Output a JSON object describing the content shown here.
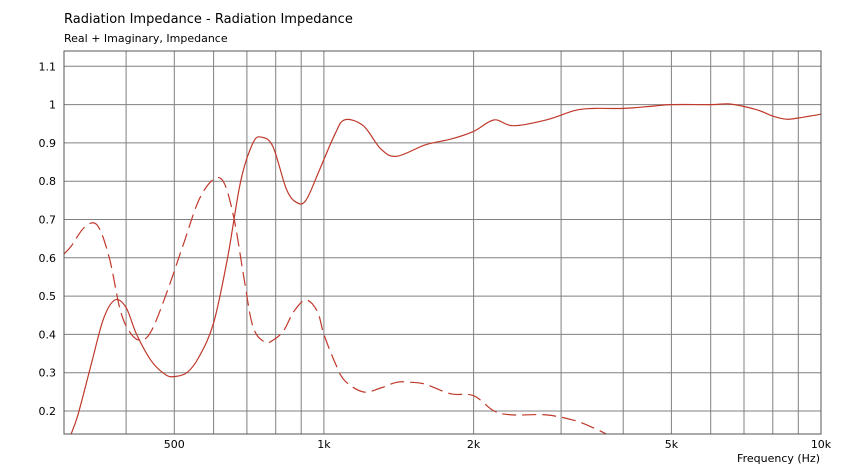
{
  "title": "Radiation Impedance - Radiation Impedance",
  "subtitle": "Real + Imaginary, Impedance",
  "chart_data": {
    "type": "line",
    "xscale": "log",
    "xlim": [
      300,
      10000
    ],
    "ylim": [
      0.14,
      1.14
    ],
    "xlabel": "Frequency  (Hz)",
    "ylabel": "",
    "x_ticks": [
      {
        "value": 500,
        "label": "500"
      },
      {
        "value": 1000,
        "label": "1k"
      },
      {
        "value": 2000,
        "label": "2k"
      },
      {
        "value": 5000,
        "label": "5k"
      },
      {
        "value": 10000,
        "label": "10k"
      }
    ],
    "x_gridlines": [
      400,
      500,
      600,
      700,
      800,
      900,
      1000,
      2000,
      3000,
      4000,
      5000,
      6000,
      7000,
      8000,
      9000,
      10000
    ],
    "y_ticks": [
      {
        "value": 0.2,
        "label": "0.2"
      },
      {
        "value": 0.3,
        "label": "0.3"
      },
      {
        "value": 0.4,
        "label": "0.4"
      },
      {
        "value": 0.5,
        "label": "0.5"
      },
      {
        "value": 0.6,
        "label": "0.6"
      },
      {
        "value": 0.7,
        "label": "0.7"
      },
      {
        "value": 0.8,
        "label": "0.8"
      },
      {
        "value": 0.9,
        "label": "0.9"
      },
      {
        "value": 1,
        "label": "1"
      },
      {
        "value": 1.1,
        "label": "1.1"
      }
    ],
    "grid": true,
    "line_color": "#c0392b",
    "series": [
      {
        "style": "solid",
        "x": [
          310,
          320,
          340,
          360,
          380,
          400,
          420,
          450,
          480,
          500,
          530,
          560,
          600,
          640,
          680,
          720,
          750,
          790,
          840,
          880,
          920,
          980,
          1050,
          1100,
          1200,
          1300,
          1400,
          1600,
          1800,
          2000,
          2200,
          2400,
          2800,
          3200,
          3500,
          4000,
          4500,
          5000,
          6000,
          6500,
          7000,
          7500,
          8000,
          8500,
          9000,
          9500,
          10000
        ],
        "y": [
          0.14,
          0.19,
          0.32,
          0.44,
          0.49,
          0.47,
          0.4,
          0.33,
          0.295,
          0.29,
          0.3,
          0.34,
          0.43,
          0.6,
          0.8,
          0.9,
          0.915,
          0.89,
          0.78,
          0.745,
          0.75,
          0.83,
          0.92,
          0.96,
          0.945,
          0.885,
          0.865,
          0.895,
          0.91,
          0.93,
          0.96,
          0.945,
          0.96,
          0.985,
          0.99,
          0.99,
          0.995,
          1.0,
          1.0,
          1.002,
          0.995,
          0.985,
          0.97,
          0.962,
          0.965,
          0.97,
          0.975
        ]
      },
      {
        "style": "dashed",
        "x": [
          300,
          310,
          330,
          350,
          370,
          390,
          410,
          430,
          450,
          480,
          520,
          560,
          600,
          630,
          660,
          690,
          720,
          760,
          790,
          830,
          870,
          920,
          970,
          1000,
          1050,
          1100,
          1200,
          1300,
          1400,
          1500,
          1600,
          1800,
          2000,
          2200,
          2400,
          2800,
          3200,
          3500,
          3700
        ],
        "y": [
          0.61,
          0.63,
          0.68,
          0.685,
          0.6,
          0.46,
          0.4,
          0.385,
          0.41,
          0.5,
          0.63,
          0.75,
          0.805,
          0.795,
          0.7,
          0.55,
          0.42,
          0.38,
          0.385,
          0.41,
          0.46,
          0.49,
          0.46,
          0.4,
          0.33,
          0.28,
          0.25,
          0.26,
          0.275,
          0.275,
          0.27,
          0.245,
          0.24,
          0.2,
          0.19,
          0.19,
          0.175,
          0.155,
          0.14
        ]
      }
    ]
  }
}
